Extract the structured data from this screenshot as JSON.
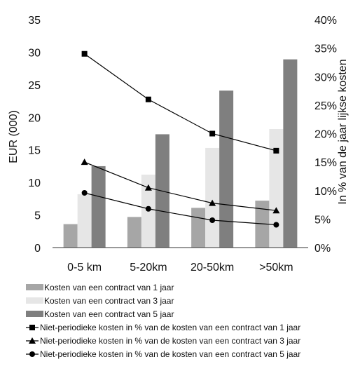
{
  "chart_data": {
    "type": "bar",
    "categories": [
      "0-5 km",
      "5-20km",
      "20-50km",
      ">50km"
    ],
    "ylabel": "EUR (000)",
    "y2label": "In % van de jaar lijkse kosten",
    "ylim": [
      0,
      35
    ],
    "yticks": [
      0,
      5,
      10,
      15,
      20,
      25,
      30,
      35
    ],
    "y2lim": [
      0,
      40
    ],
    "y2ticks": [
      "0%",
      "5%",
      "10%",
      "15%",
      "20%",
      "25%",
      "30%",
      "35%",
      "40%"
    ],
    "grid": false,
    "legend_position": "bottom",
    "series": [
      {
        "name": "Kosten van een contract van 1 jaar",
        "kind": "bar",
        "axis": "left",
        "color": "#a6a6a6",
        "values": [
          3.6,
          4.7,
          6.1,
          7.2
        ]
      },
      {
        "name": "Kosten van een contract van 3 jaar",
        "kind": "bar",
        "axis": "left",
        "color": "#e6e6e6",
        "values": [
          8.2,
          11.2,
          15.3,
          18.2
        ]
      },
      {
        "name": "Kosten van een contract van 5 jaar",
        "kind": "bar",
        "axis": "left",
        "color": "#7f7f7f",
        "values": [
          12.5,
          17.4,
          24.1,
          28.9
        ]
      },
      {
        "name": "Niet-periodieke kosten in % van de kosten van een contract van 1 jaar",
        "kind": "line",
        "axis": "right",
        "marker": "square",
        "color": "#000000",
        "values": [
          34,
          26,
          20,
          17
        ]
      },
      {
        "name": "Niet-periodieke kosten in % van de kosten van een contract van 3 jaar",
        "kind": "line",
        "axis": "right",
        "marker": "triangle",
        "color": "#000000",
        "values": [
          15,
          10.5,
          7.8,
          6.5
        ]
      },
      {
        "name": "Niet-periodieke kosten in % van de kosten van een contract van 5 jaar",
        "kind": "line",
        "axis": "right",
        "marker": "circle",
        "color": "#000000",
        "values": [
          9.6,
          6.8,
          4.8,
          4
        ]
      }
    ]
  }
}
